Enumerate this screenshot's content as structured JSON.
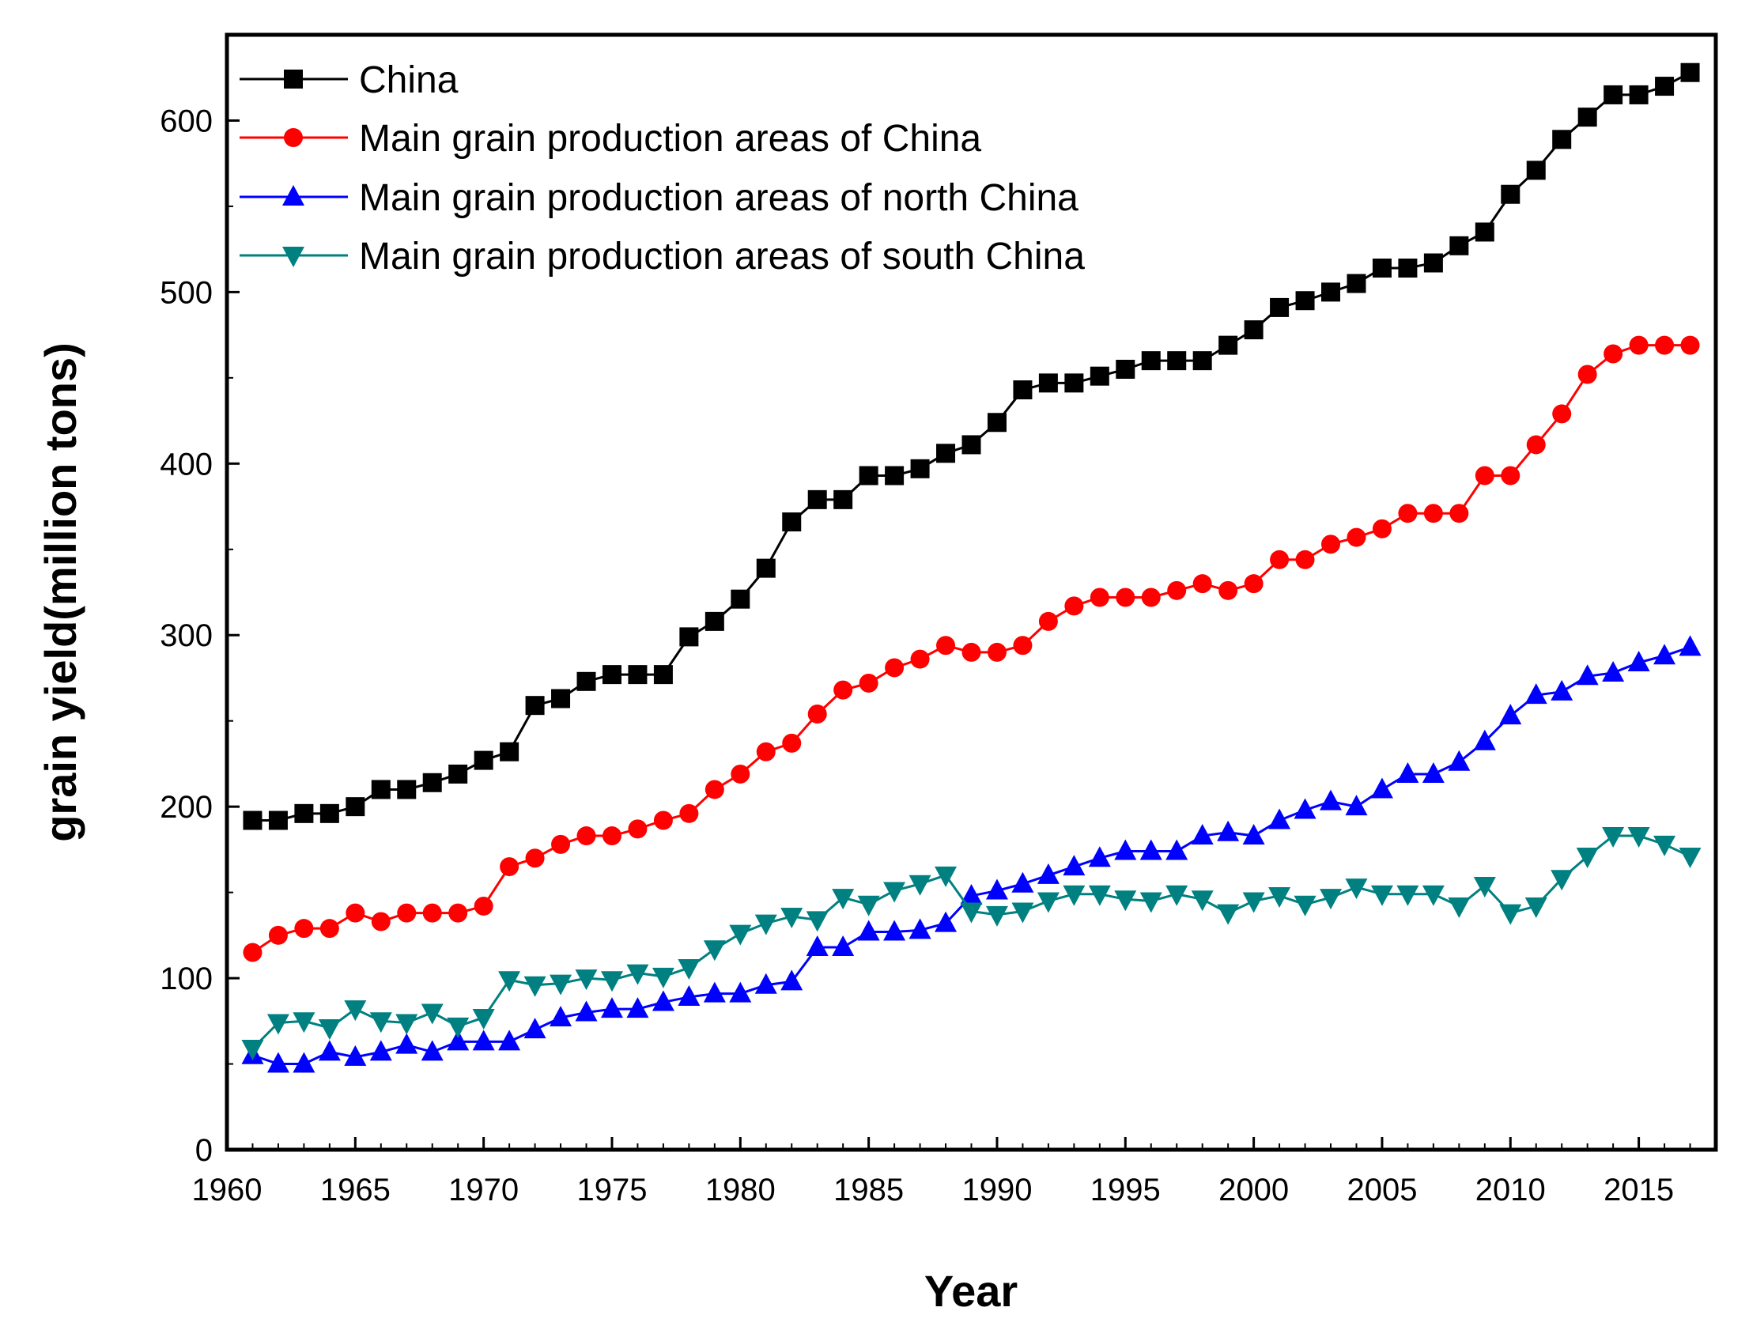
{
  "chart_data": {
    "type": "line",
    "title": "",
    "xlabel": "Year",
    "ylabel": "grain yield(million tons)",
    "xlim": [
      1960,
      2018
    ],
    "ylim": [
      0,
      650
    ],
    "xticks": [
      1960,
      1965,
      1970,
      1975,
      1980,
      1985,
      1990,
      1995,
      2000,
      2005,
      2010,
      2015
    ],
    "yticks": [
      0,
      100,
      200,
      300,
      400,
      500,
      600
    ],
    "legend_position": "top-left",
    "x": [
      1961,
      1962,
      1963,
      1964,
      1965,
      1966,
      1967,
      1968,
      1969,
      1970,
      1971,
      1972,
      1973,
      1974,
      1975,
      1976,
      1977,
      1978,
      1979,
      1980,
      1981,
      1982,
      1983,
      1984,
      1985,
      1986,
      1987,
      1988,
      1989,
      1990,
      1991,
      1992,
      1993,
      1994,
      1995,
      1996,
      1997,
      1998,
      1999,
      2000,
      2001,
      2002,
      2003,
      2004,
      2005,
      2006,
      2007,
      2008,
      2009,
      2010,
      2011,
      2012,
      2013,
      2014,
      2015,
      2016,
      2017
    ],
    "series": [
      {
        "name": "China",
        "color": "#000000",
        "marker": "square",
        "values": [
          192,
          192,
          196,
          196,
          200,
          210,
          210,
          214,
          219,
          227,
          232,
          259,
          263,
          273,
          277,
          277,
          277,
          299,
          308,
          321,
          339,
          366,
          379,
          379,
          393,
          393,
          397,
          406,
          411,
          424,
          443,
          447,
          447,
          451,
          455,
          460,
          460,
          460,
          469,
          478,
          491,
          495,
          500,
          505,
          514,
          514,
          517,
          527,
          535,
          557,
          571,
          589,
          602,
          615,
          615,
          620,
          628
        ]
      },
      {
        "name": "Main grain production areas of China",
        "color": "#ff0000",
        "marker": "circle",
        "values": [
          115,
          125,
          129,
          129,
          138,
          133,
          138,
          138,
          138,
          142,
          165,
          170,
          178,
          183,
          183,
          187,
          192,
          196,
          210,
          219,
          232,
          237,
          254,
          268,
          272,
          281,
          286,
          294,
          290,
          290,
          294,
          308,
          317,
          322,
          322,
          322,
          326,
          330,
          326,
          330,
          344,
          344,
          353,
          357,
          362,
          371,
          371,
          371,
          393,
          393,
          411,
          429,
          452,
          464,
          469,
          469,
          469
        ]
      },
      {
        "name": "Main grain production areas of north China",
        "color": "#0000ff",
        "marker": "triangle-up",
        "values": [
          55,
          50,
          50,
          57,
          54,
          57,
          61,
          57,
          63,
          63,
          63,
          70,
          77,
          80,
          82,
          82,
          86,
          89,
          91,
          91,
          96,
          98,
          118,
          118,
          127,
          127,
          128,
          132,
          148,
          151,
          155,
          160,
          165,
          170,
          174,
          174,
          174,
          183,
          185,
          183,
          192,
          198,
          203,
          200,
          210,
          219,
          219,
          226,
          238,
          253,
          265,
          267,
          276,
          278,
          284,
          288,
          293
        ]
      },
      {
        "name": "Main grain production areas of south China",
        "color": "#008080",
        "marker": "triangle-down",
        "values": [
          59,
          74,
          75,
          71,
          82,
          75,
          74,
          80,
          72,
          77,
          99,
          96,
          97,
          100,
          99,
          103,
          101,
          106,
          117,
          126,
          132,
          136,
          134,
          147,
          143,
          151,
          155,
          160,
          139,
          137,
          139,
          145,
          149,
          149,
          146,
          145,
          149,
          146,
          138,
          145,
          148,
          143,
          147,
          153,
          149,
          149,
          149,
          142,
          154,
          138,
          142,
          158,
          171,
          183,
          183,
          178,
          171
        ]
      }
    ]
  }
}
